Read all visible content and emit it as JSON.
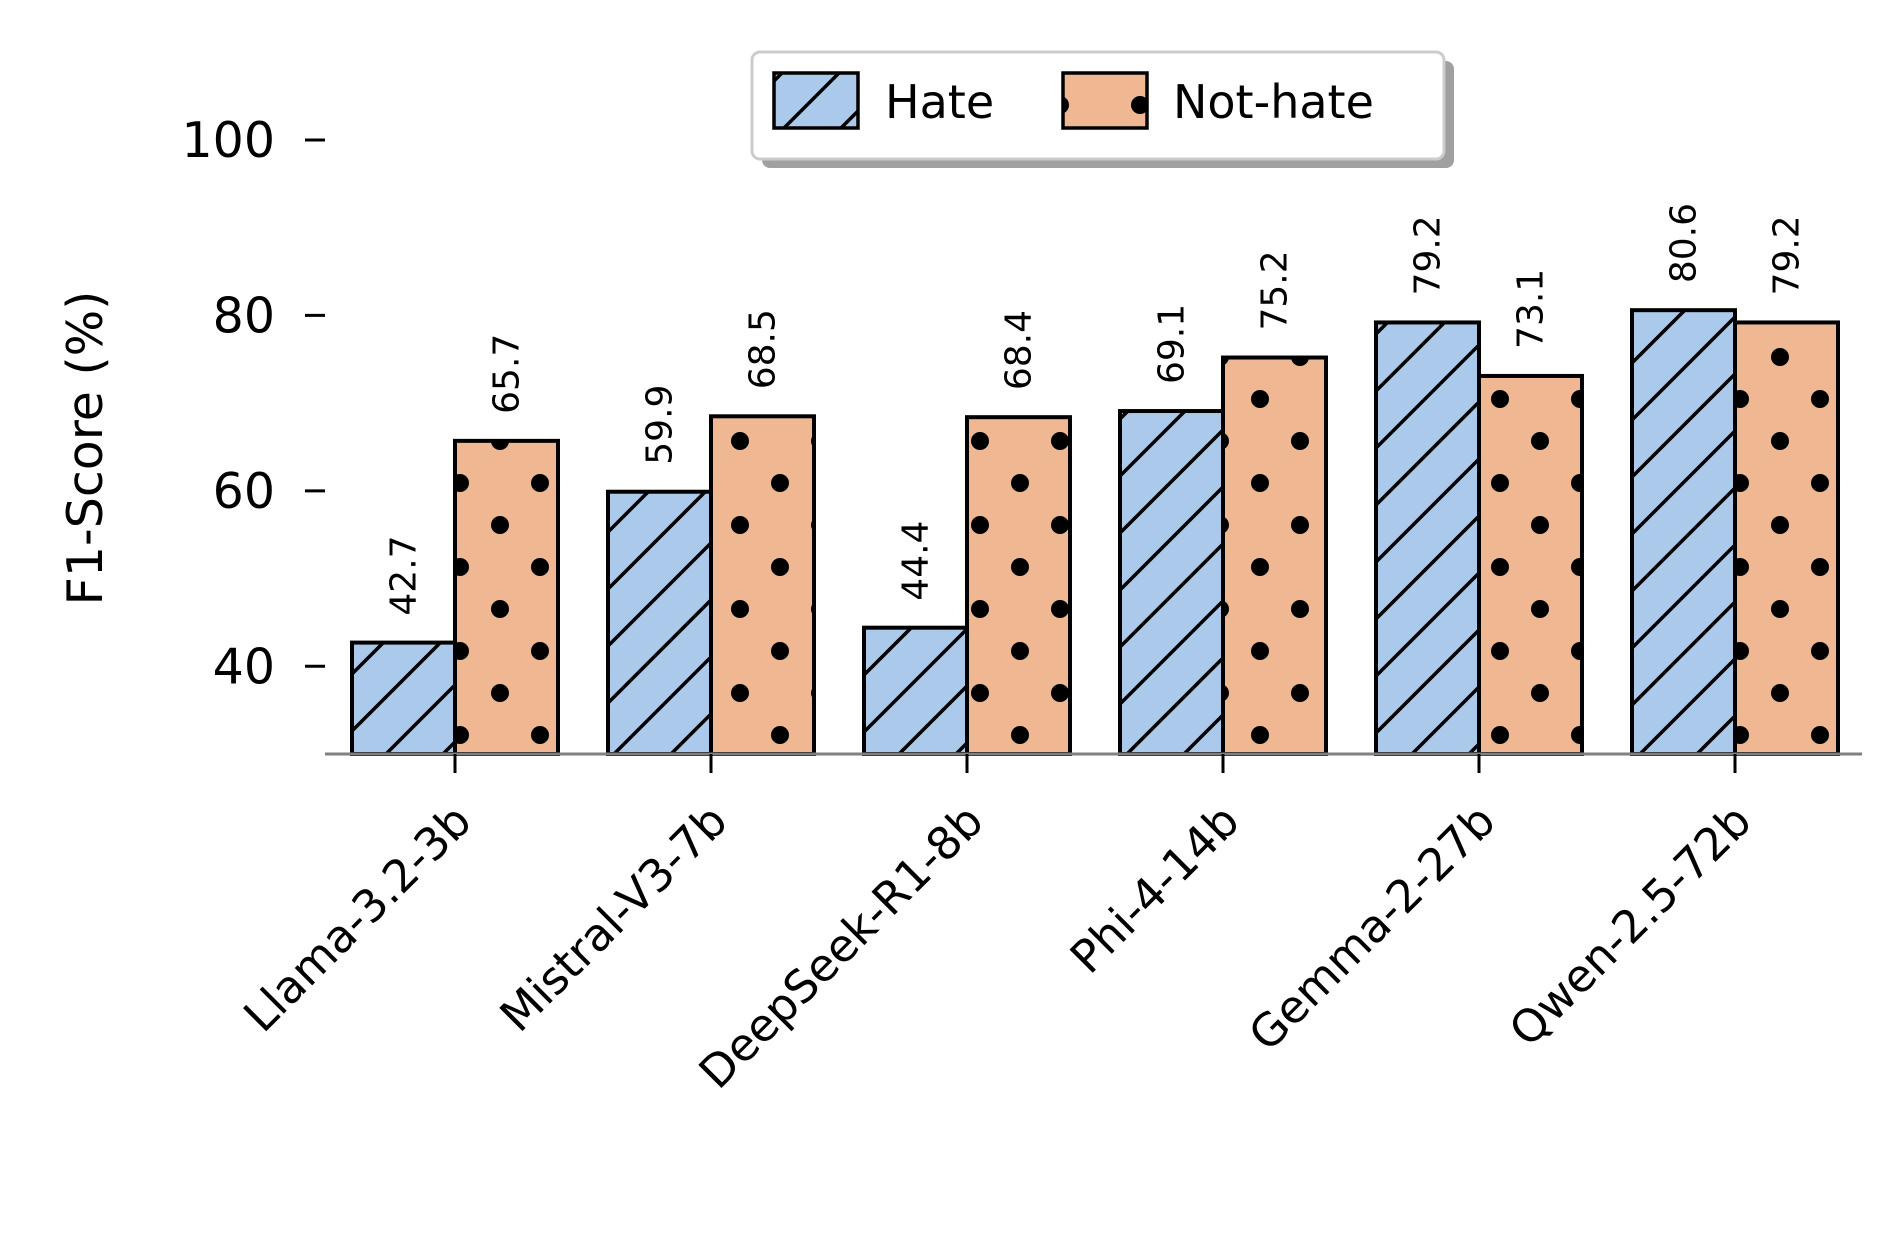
{
  "chart_data": {
    "type": "bar",
    "title": "",
    "xlabel": "",
    "ylabel": "F1-Score (%)",
    "ylim": [
      30,
      100
    ],
    "yticks": [
      40,
      60,
      80,
      100
    ],
    "categories": [
      "Llama-3.2-3b",
      "Mistral-V3-7b",
      "DeepSeek-R1-8b",
      "Phi-4-14b",
      "Gemma-2-27b",
      "Qwen-2.5-72b"
    ],
    "series": [
      {
        "name": "Hate",
        "values": [
          42.7,
          59.9,
          44.4,
          69.1,
          79.2,
          80.6
        ],
        "color": "#abc9ea",
        "pattern": "hatch"
      },
      {
        "name": "Not-hate",
        "values": [
          65.7,
          68.5,
          68.4,
          75.2,
          73.1,
          79.2
        ],
        "color": "#efb792",
        "pattern": "dots"
      }
    ],
    "data_labels": [
      [
        "42.7",
        "59.9",
        "44.4",
        "69.1",
        "79.2",
        "80.6"
      ],
      [
        "65.7",
        "68.5",
        "68.4",
        "75.2",
        "73.1",
        "79.2"
      ]
    ],
    "legend": "top-center",
    "grid": false
  }
}
